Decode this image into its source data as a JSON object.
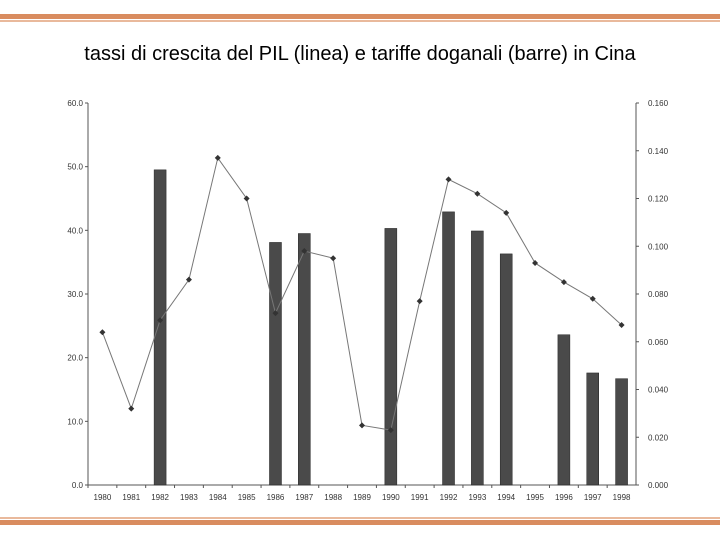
{
  "slide": {
    "title": "tassi di crescita del PIL (linea) e tariffe doganali (barre) in Cina"
  },
  "chart_data": {
    "type": "bar",
    "title": "tassi di crescita del PIL (linea) e tariffe doganali (barre) in Cina",
    "xlabel": "",
    "ylabel_left": "",
    "ylabel_right": "",
    "categories": [
      "1980",
      "1981",
      "1982",
      "1983",
      "1984",
      "1985",
      "1986",
      "1987",
      "1988",
      "1989",
      "1990",
      "1991",
      "1992",
      "1993",
      "1994",
      "1995",
      "1996",
      "1997",
      "1998"
    ],
    "y_left": {
      "min": 0,
      "max": 60,
      "ticks": [
        "0.0",
        "10.0",
        "20.0",
        "30.0",
        "40.0",
        "50.0",
        "60.0"
      ]
    },
    "y_right": {
      "min": 0,
      "max": 0.16,
      "ticks": [
        "0.000",
        "0.020",
        "0.040",
        "0.060",
        "0.080",
        "0.100",
        "0.120",
        "0.140",
        "0.160"
      ]
    },
    "series": [
      {
        "kind": "bar",
        "axis": "left",
        "values": [
          null,
          null,
          49.5,
          null,
          null,
          null,
          38.1,
          39.5,
          null,
          null,
          40.3,
          null,
          42.9,
          39.9,
          36.3,
          null,
          23.6,
          17.6,
          16.7
        ]
      },
      {
        "kind": "line",
        "axis": "right",
        "values": [
          0.064,
          0.032,
          0.069,
          0.086,
          0.137,
          0.12,
          0.072,
          0.098,
          0.095,
          0.025,
          0.023,
          0.077,
          0.128,
          0.122,
          0.114,
          0.093,
          0.085,
          0.078,
          0.067
        ]
      }
    ],
    "colors": {
      "bar": "#4a4a4a",
      "line": "#777777",
      "marker": "#333333"
    },
    "grid": false,
    "legend": "none"
  }
}
